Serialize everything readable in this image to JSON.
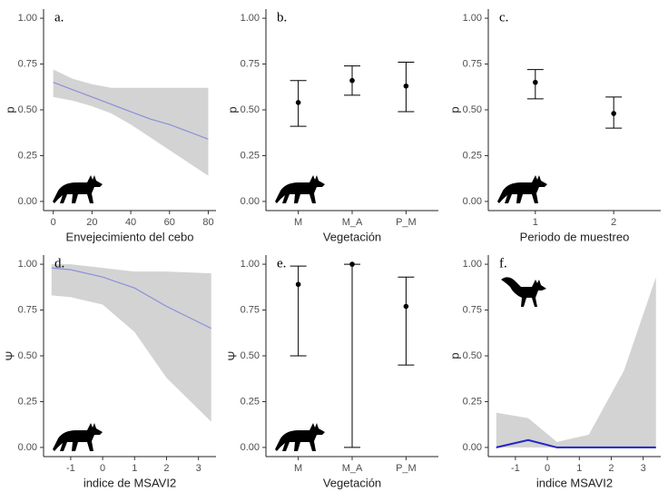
{
  "chart_data": [
    {
      "type": "line",
      "annotation": "a.",
      "xlabel": "Envejecimiento del cebo",
      "ylabel": "p",
      "x": [
        0,
        10,
        20,
        30,
        40,
        50,
        60,
        70,
        80
      ],
      "series": [
        {
          "color": "#8c8fdb",
          "band_color": "#d3d3d3",
          "line_width": 1.2,
          "values": [
            0.65,
            0.61,
            0.57,
            0.53,
            0.49,
            0.45,
            0.42,
            0.38,
            0.34
          ],
          "lower": [
            0.57,
            0.55,
            0.52,
            0.48,
            0.42,
            0.35,
            0.28,
            0.21,
            0.14
          ],
          "upper": [
            0.72,
            0.67,
            0.64,
            0.62,
            0.62,
            0.62,
            0.62,
            0.62,
            0.62
          ]
        }
      ],
      "xlim": [
        -5,
        84
      ],
      "xticks": [
        0,
        20,
        40,
        60,
        80
      ],
      "ylim": [
        -0.05,
        1.05
      ],
      "yticks": [
        {
          "value": 0,
          "label": "0.00"
        },
        {
          "value": 0.25,
          "label": "0.25"
        },
        {
          "value": 0.5,
          "label": "0.50"
        },
        {
          "value": 0.75,
          "label": "0.75"
        },
        {
          "value": 1,
          "label": "1.00"
        }
      ]
    },
    {
      "type": "errorbar",
      "annotation": "b.",
      "xlabel": "Vegetación",
      "ylabel": "p",
      "categories": [
        "M",
        "M_A",
        "P_M"
      ],
      "color": "#000000",
      "values": [
        0.54,
        0.66,
        0.63
      ],
      "lower": [
        0.41,
        0.58,
        0.49
      ],
      "upper": [
        0.66,
        0.74,
        0.76
      ],
      "ylim": [
        -0.05,
        1.05
      ],
      "yticks": [
        {
          "value": 0,
          "label": "0.00"
        },
        {
          "value": 0.25,
          "label": "0.25"
        },
        {
          "value": 0.5,
          "label": "0.50"
        },
        {
          "value": 0.75,
          "label": "0.75"
        },
        {
          "value": 1,
          "label": "1.00"
        }
      ]
    },
    {
      "type": "errorbar",
      "annotation": "c.",
      "xlabel": "Periodo de muestreo",
      "ylabel": "p",
      "categories": [
        "1",
        "2"
      ],
      "color": "#000000",
      "values": [
        0.65,
        0.48
      ],
      "lower": [
        0.56,
        0.4
      ],
      "upper": [
        0.72,
        0.57
      ],
      "ylim": [
        -0.05,
        1.05
      ],
      "yticks": [
        {
          "value": 0,
          "label": "0.00"
        },
        {
          "value": 0.25,
          "label": "0.25"
        },
        {
          "value": 0.5,
          "label": "0.50"
        },
        {
          "value": 0.75,
          "label": "0.75"
        },
        {
          "value": 1,
          "label": "1.00"
        }
      ]
    },
    {
      "type": "line",
      "annotation": "d.",
      "xlabel": "indice de MSAVI2",
      "ylabel": "Ψ",
      "x": [
        -1.6,
        -1,
        0,
        1,
        2,
        3.4
      ],
      "series": [
        {
          "color": "#8c8fdb",
          "band_color": "#d3d3d3",
          "line_width": 1.2,
          "values": [
            0.98,
            0.97,
            0.93,
            0.87,
            0.77,
            0.65
          ],
          "lower": [
            0.83,
            0.82,
            0.78,
            0.63,
            0.38,
            0.14
          ],
          "upper": [
            1.0,
            1.0,
            0.98,
            0.96,
            0.96,
            0.95
          ]
        }
      ],
      "xlim": [
        -1.85,
        3.55
      ],
      "xticks": [
        -1,
        0,
        1,
        2,
        3
      ],
      "ylim": [
        -0.05,
        1.05
      ],
      "yticks": [
        {
          "value": 0,
          "label": "0.00"
        },
        {
          "value": 0.25,
          "label": "0.25"
        },
        {
          "value": 0.5,
          "label": "0.50"
        },
        {
          "value": 0.75,
          "label": "0.75"
        },
        {
          "value": 1,
          "label": "1.00"
        }
      ]
    },
    {
      "type": "errorbar",
      "annotation": "e.",
      "xlabel": "Vegetación",
      "ylabel": "Ψ",
      "categories": [
        "M",
        "M_A",
        "P_M"
      ],
      "color": "#000000",
      "values": [
        0.89,
        1.0,
        0.77
      ],
      "lower": [
        0.5,
        0.0,
        0.45
      ],
      "upper": [
        0.99,
        1.0,
        0.93
      ],
      "ylim": [
        -0.05,
        1.05
      ],
      "yticks": [
        {
          "value": 0,
          "label": "0.00"
        },
        {
          "value": 0.25,
          "label": "0.25"
        },
        {
          "value": 0.5,
          "label": "0.50"
        },
        {
          "value": 0.75,
          "label": "0.75"
        },
        {
          "value": 1,
          "label": "1.00"
        }
      ]
    },
    {
      "type": "line",
      "annotation": "f.",
      "xlabel": "indice MSAVI2",
      "ylabel": "p",
      "x": [
        -1.6,
        -0.6,
        0.3,
        1.3,
        2.4,
        3.4
      ],
      "series": [
        {
          "color": "#2323c8",
          "band_color": "#d3d3d3",
          "line_width": 2,
          "values": [
            0.0,
            0.04,
            0.0,
            0.0,
            0.0,
            0.0
          ],
          "lower": [
            0.0,
            0.0,
            0.0,
            0.0,
            0.0,
            0.0
          ],
          "upper": [
            0.19,
            0.16,
            0.03,
            0.07,
            0.42,
            0.93
          ]
        }
      ],
      "xlim": [
        -1.85,
        3.55
      ],
      "xticks": [
        -1,
        0,
        1,
        2,
        3
      ],
      "ylim": [
        -0.05,
        1.05
      ],
      "yticks": [
        {
          "value": 0,
          "label": "0.00"
        },
        {
          "value": 0.25,
          "label": "0.25"
        },
        {
          "value": 0.5,
          "label": "0.50"
        },
        {
          "value": 0.75,
          "label": "0.75"
        },
        {
          "value": 1,
          "label": "1.00"
        }
      ]
    }
  ]
}
